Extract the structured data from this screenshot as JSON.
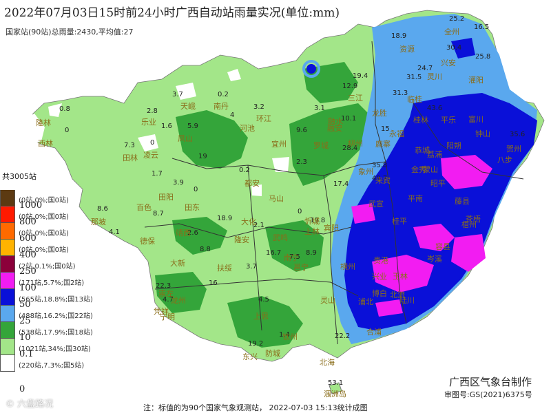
{
  "title": "2022年07月03日15时前24小时广西自动站雨量实况(单位:mm)",
  "subtitle": "国家站(90站)总雨量:2430,平均值:27",
  "legend": {
    "total": "共3005站",
    "items": [
      {
        "label": "",
        "count": "(0站,0%;国0站)",
        "color": "#5c3a12"
      },
      {
        "label": "1000",
        "count": "(0站,0%;国0站)",
        "color": "#ff1a00"
      },
      {
        "label": "800",
        "count": "(0站,0%;国0站)",
        "color": "#ff6a00"
      },
      {
        "label": "600",
        "count": "(0站,0%;国0站)",
        "color": "#ffb300"
      },
      {
        "label": "400",
        "count": "(2站,0.1%;国0站)",
        "color": "#8b003a"
      },
      {
        "label": "250",
        "count": "(171站,5.7%;国2站)",
        "color": "#f21cf2"
      },
      {
        "label": "100",
        "count": "(565站,18.8%;国13站)",
        "color": "#0a10d8"
      },
      {
        "label": "50",
        "count": "(488站,16.2%;国22站)",
        "color": "#5aa8ee"
      },
      {
        "label": "25",
        "count": "(538站,17.9%;国18站)",
        "color": "#34a53a"
      },
      {
        "label": "10",
        "count": "(1021站,34%;国30站)",
        "color": "#a3e689"
      },
      {
        "label": "0.1",
        "count": "(220站,7.3%;国5站)",
        "color": "#ffffff"
      }
    ],
    "bottom_label": "0"
  },
  "cities": [
    {
      "name": "天峨"
    },
    {
      "name": "南丹"
    },
    {
      "name": "环江"
    },
    {
      "name": "河池"
    },
    {
      "name": "乐业"
    },
    {
      "name": "凤山"
    },
    {
      "name": "隆林"
    },
    {
      "name": "西林"
    },
    {
      "name": "田林"
    },
    {
      "name": "凌云"
    },
    {
      "name": "百色"
    },
    {
      "name": "田阳"
    },
    {
      "name": "田东"
    },
    {
      "name": "那坡"
    },
    {
      "name": "德保"
    },
    {
      "name": "靖西"
    },
    {
      "name": "大新"
    },
    {
      "name": "龙州"
    },
    {
      "name": "宁明"
    },
    {
      "name": "凭祥"
    },
    {
      "name": "东兴"
    },
    {
      "name": "防城"
    },
    {
      "name": "北海"
    },
    {
      "name": "涠洲岛"
    },
    {
      "name": "钦州"
    },
    {
      "name": "灵山"
    },
    {
      "name": "浦北"
    },
    {
      "name": "合浦"
    },
    {
      "name": "横州"
    },
    {
      "name": "贵港"
    },
    {
      "name": "武宣"
    },
    {
      "name": "桂平"
    },
    {
      "name": "平南"
    },
    {
      "name": "藤县"
    },
    {
      "name": "苍梧"
    },
    {
      "name": "梧州"
    },
    {
      "name": "岑溪"
    },
    {
      "name": "容县"
    },
    {
      "name": "北流"
    },
    {
      "name": "玉林"
    },
    {
      "name": "陆川"
    },
    {
      "name": "博白"
    },
    {
      "name": "兴业"
    },
    {
      "name": "贺州"
    },
    {
      "name": "富川"
    },
    {
      "name": "钟山"
    },
    {
      "name": "昭平"
    },
    {
      "name": "蒙山"
    },
    {
      "name": "金秀"
    },
    {
      "name": "象州"
    },
    {
      "name": "来宾"
    },
    {
      "name": "柳州"
    },
    {
      "name": "鹿寨"
    },
    {
      "name": "融安"
    },
    {
      "name": "融水"
    },
    {
      "name": "三江"
    },
    {
      "name": "罗城"
    },
    {
      "name": "宜州"
    },
    {
      "name": "忻城"
    },
    {
      "name": "上林"
    },
    {
      "name": "宾阳"
    },
    {
      "name": "马山"
    },
    {
      "name": "都安"
    },
    {
      "name": "大化"
    },
    {
      "name": "武鸣"
    },
    {
      "name": "南宁"
    },
    {
      "name": "邕宁"
    },
    {
      "name": "隆安"
    },
    {
      "name": "扶绥"
    },
    {
      "name": "崇左"
    },
    {
      "name": "上思"
    },
    {
      "name": "恭城"
    },
    {
      "name": "阳朔"
    },
    {
      "name": "荔浦"
    },
    {
      "name": "临桂"
    },
    {
      "name": "桂林"
    },
    {
      "name": "灵川"
    },
    {
      "name": "兴安"
    },
    {
      "name": "全州"
    },
    {
      "name": "资源"
    },
    {
      "name": "龙胜"
    },
    {
      "name": "永福"
    },
    {
      "name": "平乐"
    },
    {
      "name": "灌阳"
    },
    {
      "name": "八步"
    }
  ],
  "values": [
    {
      "v": "25.2"
    },
    {
      "v": "16.5"
    },
    {
      "v": "18.9"
    },
    {
      "v": "30.4"
    },
    {
      "v": "25.8"
    },
    {
      "v": "24.7"
    },
    {
      "v": "19.4"
    },
    {
      "v": "31.5"
    },
    {
      "v": "12.9"
    },
    {
      "v": "31.3"
    },
    {
      "v": "3.7"
    },
    {
      "v": "0.2"
    },
    {
      "v": "3.2"
    },
    {
      "v": "3.1"
    },
    {
      "v": "0.8"
    },
    {
      "v": "2.8"
    },
    {
      "v": "1.6"
    },
    {
      "v": "5.9"
    },
    {
      "v": "4"
    },
    {
      "v": "9.6"
    },
    {
      "v": "10.1"
    },
    {
      "v": "15"
    },
    {
      "v": "43.6"
    },
    {
      "v": "35.6"
    },
    {
      "v": "7.3"
    },
    {
      "v": "0"
    },
    {
      "v": "0"
    },
    {
      "v": "19"
    },
    {
      "v": "28.4"
    },
    {
      "v": "35.8"
    },
    {
      "v": "1.7"
    },
    {
      "v": "3.9"
    },
    {
      "v": "0"
    },
    {
      "v": "0.2"
    },
    {
      "v": "17.4"
    },
    {
      "v": "49.7"
    },
    {
      "v": "8.6"
    },
    {
      "v": "8.7"
    },
    {
      "v": "18.9"
    },
    {
      "v": "2.1"
    },
    {
      "v": "0"
    },
    {
      "v": "19.8"
    },
    {
      "v": "4.1"
    },
    {
      "v": "2.6"
    },
    {
      "v": "8.8"
    },
    {
      "v": "16.7"
    },
    {
      "v": "8.9"
    },
    {
      "v": "3.7"
    },
    {
      "v": "22.3"
    },
    {
      "v": "16"
    },
    {
      "v": "4.7"
    },
    {
      "v": "4.5"
    },
    {
      "v": "19.2"
    },
    {
      "v": "1.4"
    },
    {
      "v": "22.2"
    },
    {
      "v": "53.1"
    },
    {
      "v": "2.3"
    },
    {
      "v": "7.5"
    }
  ],
  "maker": "广西区气象台制作",
  "review": "审图号:GS(2021)6375号",
  "footnote": "注：标值的为90个国家气象观测站， 2022-07-03  15:13统计成图",
  "watermark": "© 六盘路况",
  "colors": {
    "c0": "#ffffff",
    "c10": "#a3e689",
    "c25": "#34a53a",
    "c50": "#5aa8ee",
    "c100": "#0a10d8",
    "c250": "#f21cf2",
    "c400": "#8b003a",
    "border": "#333333",
    "city": "#8a6d1a"
  }
}
